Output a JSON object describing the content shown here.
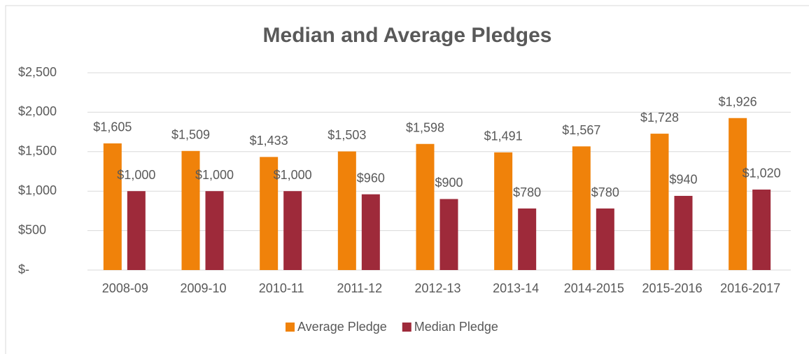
{
  "chart_data": {
    "type": "bar",
    "title": "Median and Average Pledges",
    "categories": [
      "2008-09",
      "2009-10",
      "2010-11",
      "2011-12",
      "2012-13",
      "2013-14",
      "2014-2015",
      "2015-2016",
      "2016-2017"
    ],
    "series": [
      {
        "name": "Average Pledge",
        "color": "#f0820a",
        "values": [
          1605,
          1509,
          1433,
          1503,
          1598,
          1491,
          1567,
          1728,
          1926
        ],
        "value_labels": [
          "$1,605",
          "$1,509",
          "$1,433",
          "$1,503",
          "$1,598",
          "$1,491",
          "$1,567",
          "$1,728",
          "$1,926"
        ]
      },
      {
        "name": "Median Pledge",
        "color": "#9e2a3a",
        "values": [
          1000,
          1000,
          1000,
          960,
          900,
          780,
          780,
          940,
          1020
        ],
        "value_labels": [
          "$1,000",
          "$1,000",
          "$1,000",
          "$960",
          "$900",
          "$780",
          "$780",
          "$940",
          "$1,020"
        ]
      }
    ],
    "ylim": [
      0,
      2500
    ],
    "yticks": [
      {
        "value": 0,
        "label": "$-"
      },
      {
        "value": 500,
        "label": "$500"
      },
      {
        "value": 1000,
        "label": "$1,000"
      },
      {
        "value": 1500,
        "label": "$1,500"
      },
      {
        "value": 2000,
        "label": "$2,000"
      },
      {
        "value": 2500,
        "label": "$2,500"
      }
    ],
    "grid": true,
    "legend": "bottom"
  }
}
